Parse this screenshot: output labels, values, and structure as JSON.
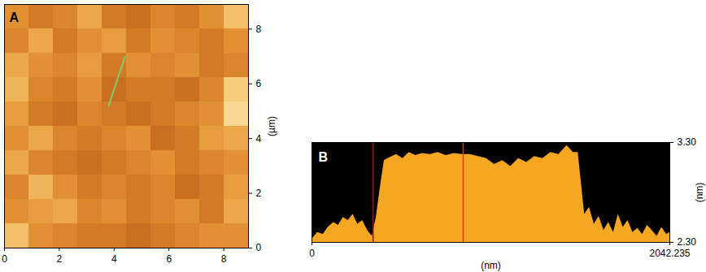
{
  "chart_data": [
    {
      "type": "heatmap",
      "panel_label": "A",
      "xlim": [
        0,
        8.9
      ],
      "ylim": [
        0,
        8.9
      ],
      "xticks": [
        0,
        2,
        4,
        6,
        8
      ],
      "yticks": [
        0,
        2,
        4,
        6,
        8
      ],
      "y_label": "(µm)",
      "cells": [
        [
          0.6,
          0.5,
          0.55,
          0.7,
          0.5,
          0.45,
          0.55,
          0.5,
          0.6,
          0.8
        ],
        [
          0.55,
          0.7,
          0.5,
          0.6,
          0.65,
          0.5,
          0.6,
          0.55,
          0.5,
          0.6
        ],
        [
          0.7,
          0.6,
          0.55,
          0.65,
          0.5,
          0.6,
          0.55,
          0.6,
          0.5,
          0.55
        ],
        [
          0.75,
          0.55,
          0.5,
          0.6,
          0.45,
          0.5,
          0.5,
          0.45,
          0.55,
          0.85
        ],
        [
          0.65,
          0.5,
          0.45,
          0.55,
          0.5,
          0.45,
          0.5,
          0.55,
          0.6,
          0.9
        ],
        [
          0.6,
          0.7,
          0.55,
          0.5,
          0.55,
          0.6,
          0.45,
          0.5,
          0.65,
          0.7
        ],
        [
          0.7,
          0.55,
          0.5,
          0.45,
          0.5,
          0.55,
          0.6,
          0.5,
          0.55,
          0.6
        ],
        [
          0.55,
          0.75,
          0.6,
          0.5,
          0.55,
          0.5,
          0.55,
          0.45,
          0.5,
          0.65
        ],
        [
          0.6,
          0.65,
          0.7,
          0.55,
          0.6,
          0.5,
          0.55,
          0.6,
          0.5,
          0.7
        ],
        [
          0.8,
          0.6,
          0.55,
          0.5,
          0.5,
          0.45,
          0.5,
          0.55,
          0.6,
          0.6
        ]
      ],
      "profile_line": {
        "x": [
          3.8,
          4.4
        ],
        "y": [
          5.2,
          7.0
        ],
        "color": "#7ccf6a"
      }
    },
    {
      "type": "area",
      "panel_label": "B",
      "x_label": "(nm)",
      "y_label": "(nm)",
      "x": [
        0,
        32,
        64,
        92,
        124,
        151,
        179,
        207,
        234,
        262,
        289,
        317,
        344,
        367,
        390,
        413,
        445,
        482,
        519,
        555,
        592,
        629,
        675,
        720,
        766,
        812,
        858,
        904,
        950,
        996,
        1042,
        1088,
        1134,
        1179,
        1225,
        1271,
        1317,
        1363,
        1409,
        1455,
        1491,
        1519,
        1537,
        1556,
        1583,
        1611,
        1638,
        1666,
        1693,
        1721,
        1748,
        1776,
        1803,
        1831,
        1859,
        1886,
        1914,
        1941,
        1969,
        1996,
        2024,
        2042
      ],
      "values": [
        2.33,
        2.4,
        2.38,
        2.45,
        2.5,
        2.47,
        2.55,
        2.52,
        2.58,
        2.48,
        2.52,
        2.42,
        2.36,
        2.55,
        2.85,
        3.12,
        3.15,
        3.18,
        3.14,
        3.2,
        3.17,
        3.19,
        3.18,
        3.2,
        3.17,
        3.19,
        3.18,
        3.18,
        3.16,
        3.14,
        3.08,
        3.12,
        3.06,
        3.14,
        3.1,
        3.16,
        3.14,
        3.2,
        3.18,
        3.27,
        3.2,
        3.2,
        2.9,
        2.58,
        2.65,
        2.48,
        2.56,
        2.42,
        2.5,
        2.4,
        2.58,
        2.45,
        2.52,
        2.4,
        2.44,
        2.38,
        2.47,
        2.42,
        2.36,
        2.45,
        2.38,
        2.4
      ],
      "color": "#f5a623",
      "xlim": [
        0,
        2042.235
      ],
      "ylim": [
        2.3,
        3.3
      ],
      "xticks": [
        0,
        2042.235
      ],
      "yticks": [
        {
          "value": 2.3,
          "label": "2.30"
        },
        {
          "value": 3.3,
          "label": "3.30"
        }
      ],
      "cursors": [
        {
          "x": 349,
          "color": "#8b1a1a"
        },
        {
          "x": 863,
          "color": "#e03020"
        }
      ]
    }
  ]
}
